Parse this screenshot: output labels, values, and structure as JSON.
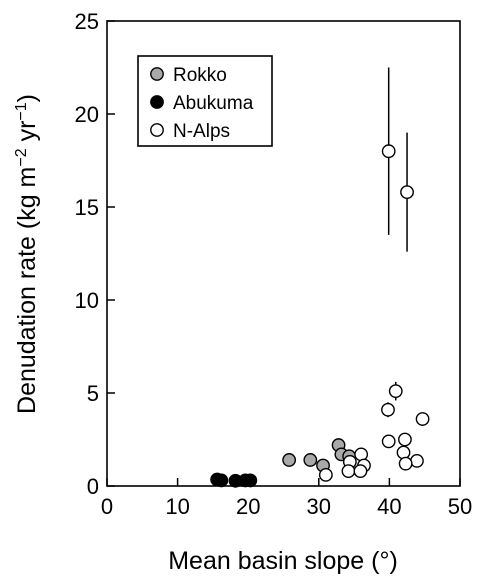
{
  "chart_data": {
    "type": "scatter",
    "title": "",
    "xlabel": "Mean basin slope (°)",
    "ylabel_main": "Denudation rate (kg m",
    "ylabel_sup1": "−2",
    "ylabel_mid": " yr",
    "ylabel_sup2": "−1",
    "ylabel_end": ")",
    "xlim": [
      0,
      50
    ],
    "ylim": [
      0,
      25
    ],
    "xticks": [
      0,
      10,
      20,
      30,
      40,
      50
    ],
    "yticks": [
      0,
      5,
      10,
      15,
      20,
      25
    ],
    "grid": false,
    "legend_position": "top-left",
    "series": [
      {
        "name": "Rokko",
        "fill": "#a9a9a9",
        "points": [
          {
            "x": 25.8,
            "y": 1.4
          },
          {
            "x": 28.8,
            "y": 1.4
          },
          {
            "x": 30.6,
            "y": 1.1
          },
          {
            "x": 32.8,
            "y": 2.2
          },
          {
            "x": 33.2,
            "y": 1.7
          },
          {
            "x": 34.3,
            "y": 1.6
          }
        ]
      },
      {
        "name": "Abukuma",
        "fill": "#000000",
        "points": [
          {
            "x": 15.6,
            "y": 0.35
          },
          {
            "x": 16.2,
            "y": 0.3
          },
          {
            "x": 18.2,
            "y": 0.28
          },
          {
            "x": 19.6,
            "y": 0.3
          },
          {
            "x": 20.3,
            "y": 0.3
          }
        ]
      },
      {
        "name": "N-Alps",
        "fill": "#ffffff",
        "points": [
          {
            "x": 39.9,
            "y": 18.0,
            "err": 4.5
          },
          {
            "x": 42.5,
            "y": 15.8,
            "err": 3.2
          },
          {
            "x": 40.9,
            "y": 5.1,
            "err": 0.5
          },
          {
            "x": 39.8,
            "y": 4.1,
            "err": 0.4
          },
          {
            "x": 44.7,
            "y": 3.6,
            "err": 0.3
          },
          {
            "x": 39.9,
            "y": 2.4
          },
          {
            "x": 42.2,
            "y": 2.5
          },
          {
            "x": 36.0,
            "y": 1.7
          },
          {
            "x": 42.0,
            "y": 1.8
          },
          {
            "x": 34.4,
            "y": 1.3
          },
          {
            "x": 36.4,
            "y": 1.1
          },
          {
            "x": 43.9,
            "y": 1.35
          },
          {
            "x": 42.3,
            "y": 1.2
          },
          {
            "x": 34.2,
            "y": 0.8
          },
          {
            "x": 35.9,
            "y": 0.8
          },
          {
            "x": 31.0,
            "y": 0.6
          }
        ]
      }
    ]
  }
}
